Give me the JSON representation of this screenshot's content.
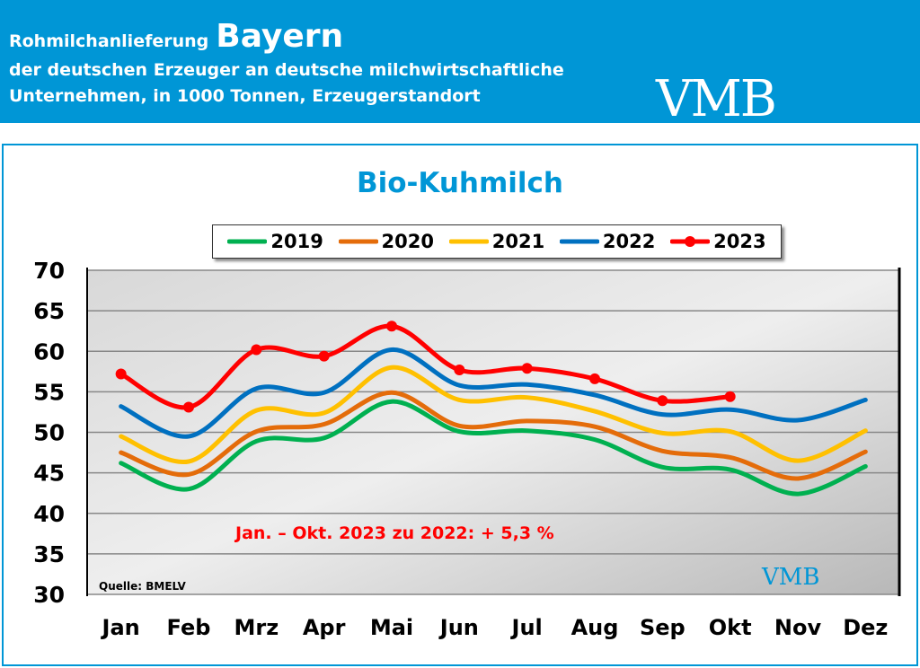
{
  "header": {
    "line1": "Rohmilchanlieferung",
    "region": "Bayern",
    "line2": "der deutschen Erzeuger an deutsche milchwirtschaftliche",
    "line3": "Unternehmen, in 1000 Tonnen, Erzeugerstandort",
    "logo": "VMB"
  },
  "chart_data": {
    "type": "line",
    "title": "Bio-Kuhmilch",
    "categories": [
      "Jan",
      "Feb",
      "Mrz",
      "Apr",
      "Mai",
      "Jun",
      "Jul",
      "Aug",
      "Sep",
      "Okt",
      "Nov",
      "Dez"
    ],
    "ylim": [
      30,
      70
    ],
    "yticks": [
      30,
      35,
      40,
      45,
      50,
      55,
      60,
      65,
      70
    ],
    "grid": true,
    "legend": "top",
    "series": [
      {
        "name": "2019",
        "color": "#00b050",
        "values": [
          46.2,
          43.0,
          48.9,
          49.3,
          53.8,
          50.1,
          50.2,
          49.1,
          45.7,
          45.4,
          42.4,
          45.8
        ]
      },
      {
        "name": "2020",
        "color": "#e46c0a",
        "values": [
          47.5,
          44.8,
          50.1,
          51.0,
          54.9,
          50.8,
          51.4,
          50.7,
          47.7,
          46.9,
          44.3,
          47.6
        ]
      },
      {
        "name": "2021",
        "color": "#ffc000",
        "values": [
          49.5,
          46.4,
          52.7,
          52.4,
          58.0,
          54.0,
          54.3,
          52.6,
          49.9,
          50.1,
          46.5,
          50.2
        ]
      },
      {
        "name": "2022",
        "color": "#0070c0",
        "values": [
          53.2,
          49.5,
          55.4,
          54.9,
          60.2,
          55.8,
          55.9,
          54.6,
          52.2,
          52.8,
          51.5,
          54.0
        ]
      },
      {
        "name": "2023",
        "color": "#ff0000",
        "markers": true,
        "values": [
          57.2,
          53.1,
          60.2,
          59.4,
          63.1,
          57.7,
          57.9,
          56.6,
          53.9,
          54.4,
          null,
          null
        ]
      }
    ],
    "annotation": "Jan. – Okt. 2023 zu 2022: + 5,3 %",
    "source": "Quelle: BMELV"
  },
  "footer_logo": "VMB"
}
